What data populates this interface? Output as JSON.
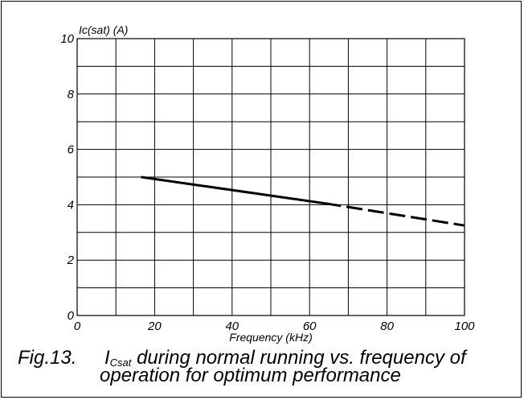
{
  "chart_data": {
    "type": "line",
    "xlabel": "Frequency (kHz)",
    "ylabel": "Ic(sat) (A)",
    "xlim": [
      0,
      100
    ],
    "ylim": [
      0,
      10
    ],
    "x_ticks": [
      0,
      20,
      40,
      60,
      80,
      100
    ],
    "y_ticks": [
      0,
      2,
      4,
      6,
      8,
      10
    ],
    "x_tick_labels": [
      "0",
      "20",
      "40",
      "60",
      "80",
      "100"
    ],
    "y_tick_labels": [
      "0",
      "2",
      "4",
      "6",
      "8",
      "10"
    ],
    "grid": true,
    "x_grid_step": 10,
    "y_grid_step": 1,
    "series": [
      {
        "style": "solid",
        "x": [
          16.5,
          64
        ],
        "y": [
          5.0,
          4.05
        ]
      },
      {
        "style": "dashed",
        "x": [
          64,
          100
        ],
        "y": [
          4.05,
          3.25
        ]
      }
    ]
  },
  "caption": {
    "fig": "Fig.13.",
    "symbol": "I",
    "symbol_sub": "Csat",
    "line1_rest": " during normal running vs. frequency of",
    "line2": "operation for optimum performance"
  }
}
